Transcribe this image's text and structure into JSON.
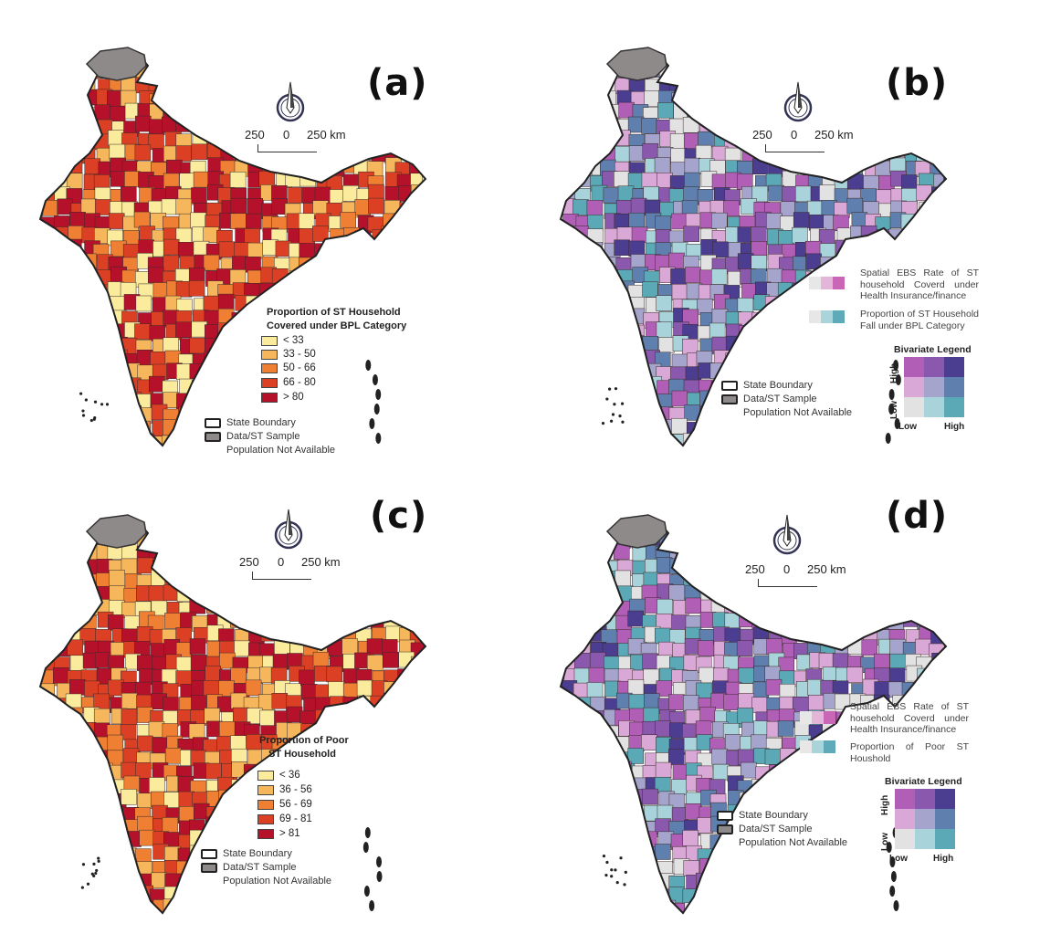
{
  "panels": [
    {
      "id": "a",
      "label": "(a)",
      "scale": {
        "left": "250",
        "mid": "0",
        "right": "250 km"
      },
      "legend_title": [
        "Proportion of ST Household",
        "Covered under BPL Category"
      ],
      "classes": [
        {
          "label": "< 33",
          "color": "#fbeb9c"
        },
        {
          "label": "33 - 50",
          "color": "#f6b75c"
        },
        {
          "label": "50 - 66",
          "color": "#ef7f33"
        },
        {
          "label": "66 - 80",
          "color": "#dc4024"
        },
        {
          "label": "> 80",
          "color": "#b5112b"
        }
      ],
      "state_boundary": "State Boundary",
      "na_line1": "Data/ST Sample",
      "na_line2": "Population Not Available"
    },
    {
      "id": "b",
      "label": "(b)",
      "scale": {
        "left": "250",
        "mid": "0",
        "right": "250 km"
      },
      "biv_text1": "Spatial EBS Rate of ST household Coverd under Health Insurance/finance",
      "biv_text2": "Proportion of ST Household Fall under BPL Category",
      "biv_title": "Bivariate Legend",
      "biv_high_y": "High",
      "biv_low_y": "Low",
      "biv_low_x": "Low",
      "biv_high_x": "High",
      "state_boundary": "State Boundary",
      "na_line1": "Data/ST Sample",
      "na_line2": "Population Not Available"
    },
    {
      "id": "c",
      "label": "(c)",
      "scale": {
        "left": "250",
        "mid": "0",
        "right": "250 km"
      },
      "legend_title": [
        "Proportion of Poor",
        "ST Household"
      ],
      "classes": [
        {
          "label": "< 36",
          "color": "#fbeb9c"
        },
        {
          "label": "36 - 56",
          "color": "#f6b75c"
        },
        {
          "label": "56 - 69",
          "color": "#ef7f33"
        },
        {
          "label": "69 - 81",
          "color": "#dc4024"
        },
        {
          "label": "> 81",
          "color": "#b5112b"
        }
      ],
      "state_boundary": "State Boundary",
      "na_line1": "Data/ST Sample",
      "na_line2": "Population Not Available"
    },
    {
      "id": "d",
      "label": "(d)",
      "scale": {
        "left": "250",
        "mid": "0",
        "right": "250 km"
      },
      "biv_text1": "Spatial EBS Rate of ST household Coverd under Health Insurance/finance",
      "biv_text2": "Proportion of Poor ST Houshold",
      "biv_title": "Bivariate Legend",
      "biv_high_y": "High",
      "biv_low_y": "Low",
      "biv_low_x": "Low",
      "biv_high_x": "High",
      "state_boundary": "State Boundary",
      "na_line1": "Data/ST Sample",
      "na_line2": "Population Not Available"
    }
  ],
  "colors": {
    "na_gray": "#8f8a8a",
    "biv_pink": [
      "#e7e7e7",
      "#e3b5d8",
      "#c966b6"
    ],
    "biv_teal": [
      "#e7e7e7",
      "#a9d4da",
      "#5eaab8"
    ],
    "biv_grid": [
      "#b15fb6",
      "#8a58ad",
      "#4b3d8f",
      "#d9a8d6",
      "#a5a4cc",
      "#5f7fae",
      "#e2e2e2",
      "#a9d3da",
      "#5ba9b7"
    ]
  }
}
